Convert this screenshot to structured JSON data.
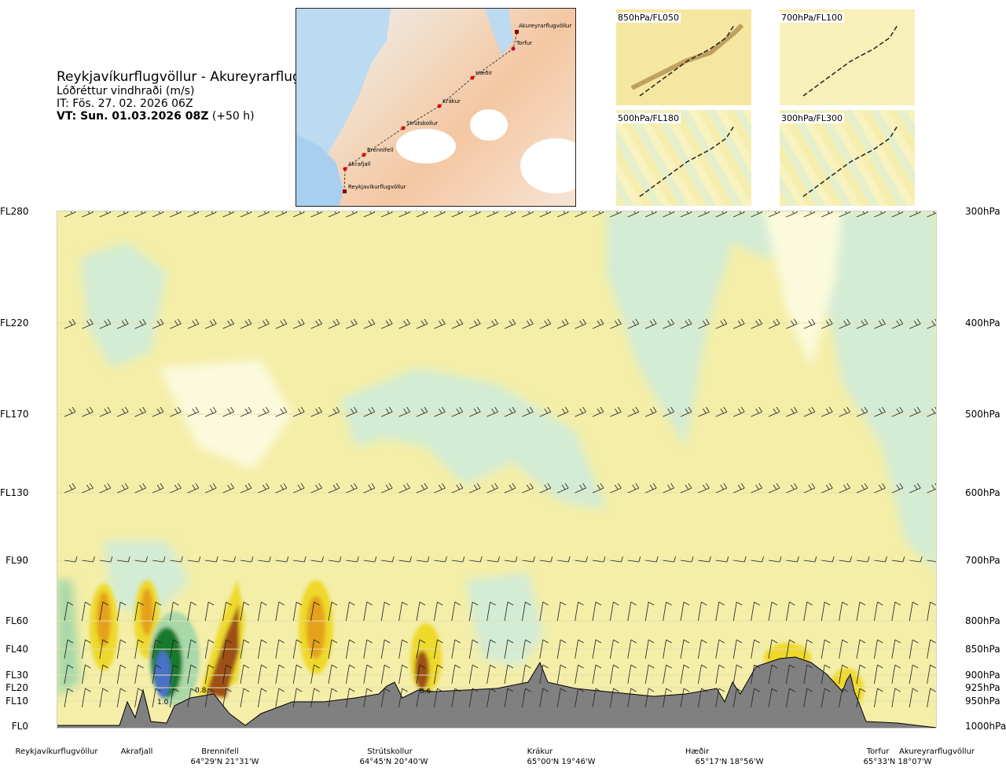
{
  "header": {
    "title": "Reykjavíkurflugvöllur - Akureyrarflugvöllur",
    "subtitle": "Lóðréttur vindhraði (m/s)",
    "issue_time": "IT: Fös. 27. 02. 2026 06Z",
    "valid_prefix": "VT: Sun. 01.03.2026 08Z",
    "valid_offset": " (+50 h)"
  },
  "map": {
    "route_points": [
      "Akureyrarflugvöllur",
      "Torfur",
      "Hæðir",
      "Krákur",
      "Strútskollur",
      "Brennifell",
      "Akrafjall",
      "Reykjavíkurflugvöllur"
    ]
  },
  "insets": [
    {
      "label": "850hPa/FL050"
    },
    {
      "label": "700hPa/FL100"
    },
    {
      "label": "500hPa/FL180"
    },
    {
      "label": "300hPa/FL300"
    }
  ],
  "chart_data": {
    "type": "heatmap",
    "title": "Lóðréttur vindhraði (m/s)",
    "left_axis_levels": [
      "FL280",
      "FL220",
      "FL170",
      "FL130",
      "FL90",
      "FL60",
      "FL40",
      "FL30",
      "FL20",
      "FL10",
      "FL0"
    ],
    "right_axis_levels": [
      "300hPa",
      "400hPa",
      "500hPa",
      "600hPa",
      "700hPa",
      "800hPa",
      "850hPa",
      "900hPa",
      "925hPa",
      "950hPa",
      "1000hPa"
    ],
    "stations": [
      "Reykjavíkurflugvöllur",
      "Akrafjall",
      "Brennifell",
      "Strútskollur",
      "Krákur",
      "Hæðir",
      "Torfur",
      "Akureyrarflugvöllur"
    ],
    "coordinates": [
      "64°29'N 21°31'W",
      "64°45'N 20°40'W",
      "65°00'N 19°46'W",
      "65°17'N 18°56'W",
      "65°33'N 18°07'W"
    ],
    "contour_labels": [
      "1.0",
      "0.8",
      "0.6"
    ],
    "colors": {
      "background": "#f4eea8",
      "light_green": "#d3ecd4",
      "pale": "#fbfadd",
      "mid_green": "#a9d8a9",
      "green": "#3aa24a",
      "dark_green": "#167a2a",
      "blue": "#4b6fc8",
      "yellow": "#eed92a",
      "orange": "#e5a11c",
      "brown": "#9c4f12",
      "terrain": "#808080"
    }
  }
}
